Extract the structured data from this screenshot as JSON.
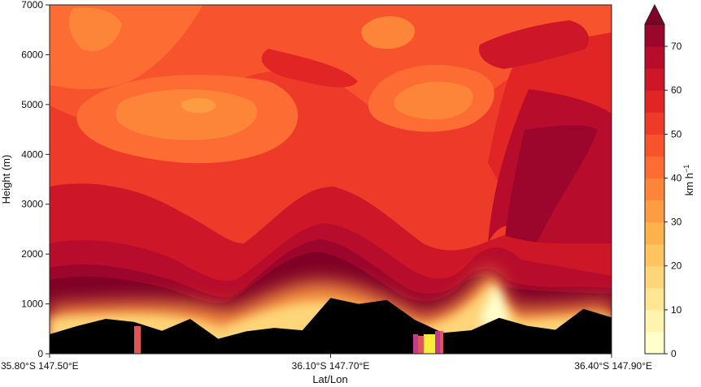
{
  "chart_data": {
    "type": "heatmap",
    "title": "",
    "xlabel": "Lat/Lon",
    "ylabel": "Height (m)",
    "x_ticks": [
      "35.80°S 147.50°E",
      "36.10°S 147.70°E",
      "36.40°S 147.90°E"
    ],
    "ylim": [
      0,
      7000
    ],
    "y_ticks": [
      0,
      1000,
      2000,
      3000,
      4000,
      5000,
      6000,
      7000
    ],
    "colorbar": {
      "label": "km h",
      "label_exponent": "−1",
      "range": [
        0,
        75
      ],
      "ticks": [
        0,
        10,
        20,
        30,
        40,
        50,
        60,
        70
      ],
      "levels": [
        0,
        5,
        10,
        15,
        20,
        25,
        30,
        35,
        40,
        45,
        50,
        55,
        60,
        65,
        70,
        75
      ],
      "colors": [
        "#ffffcc",
        "#fff3b0",
        "#ffe594",
        "#fed578",
        "#fec460",
        "#feb24c",
        "#fd9c43",
        "#fd853a",
        "#fc6c33",
        "#f7532d",
        "#ee3a28",
        "#e12424",
        "#cd1628",
        "#b70c2b",
        "#9d062c",
        "#800026"
      ],
      "extend": "max"
    },
    "series": [
      {
        "x_frac": [
          0,
          0.05,
          0.1,
          0.15,
          0.2,
          0.25,
          0.3,
          0.35,
          0.4,
          0.45,
          0.5,
          0.55,
          0.6,
          0.65,
          0.7,
          0.75,
          0.8,
          0.85,
          0.9,
          0.95,
          1.0
        ],
        "ground_height_m": [
          390,
          560,
          700,
          640,
          460,
          700,
          300,
          450,
          520,
          470,
          1120,
          1000,
          1080,
          680,
          420,
          470,
          720,
          560,
          480,
          900,
          730
        ]
      }
    ]
  }
}
